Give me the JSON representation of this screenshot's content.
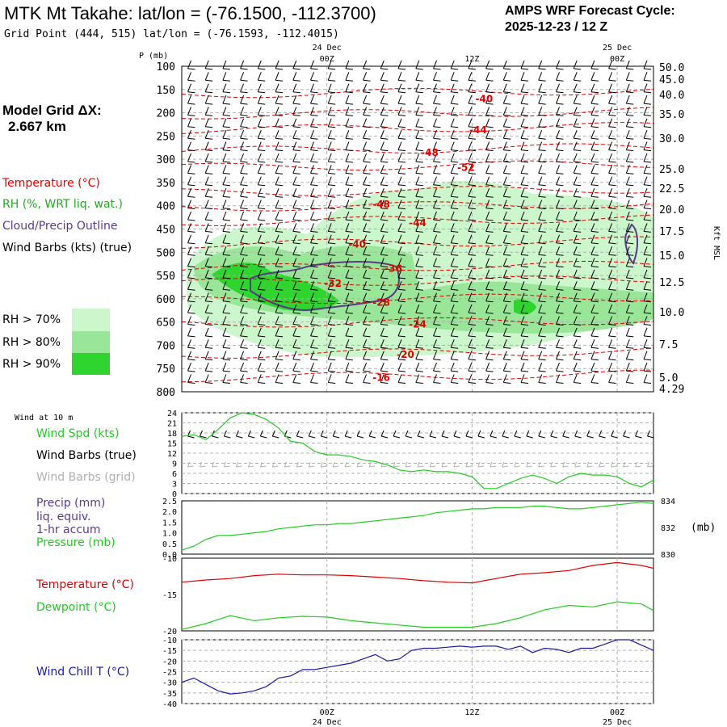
{
  "header": {
    "title": "MTK Mt Takahe:  lat/lon = (-76.1500, -112.3700)",
    "grid_point": "Grid Point (444, 515) lat/lon = (-76.1593, -112.4015)",
    "cycle_label": "AMPS WRF Forecast Cycle:",
    "cycle_value": "2025-12-23 / 12  Z"
  },
  "sidebar": {
    "model_grid_label": "Model Grid ΔX:",
    "model_grid_value": "2.667 km",
    "legend_temperature": "Temperature (°C)",
    "legend_rh": "RH (%, WRT liq. wat.)",
    "legend_cloud": "Cloud/Precip Outline",
    "legend_wind": "Wind Barbs (kts) (true)",
    "rh_levels": [
      {
        "label": "RH > 70%",
        "color": "#ccf7cc"
      },
      {
        "label": "RH > 80%",
        "color": "#99e699"
      },
      {
        "label": "RH > 90%",
        "color": "#2fd42f"
      }
    ]
  },
  "lower_labels": {
    "wind10m": "Wind at 10 m",
    "wind_spd": "Wind Spd (kts)",
    "barbs_true": "Wind Barbs (true)",
    "barbs_grid": "Wind Barbs (grid)",
    "precip": "Precip (mm)",
    "liq": "liq. equiv.",
    "accum": "1-hr accum",
    "pressure": "Pressure (mb)",
    "pressure_unit": "(mb)",
    "temperature": "Temperature (°C)",
    "dewpoint": "Dewpoint (°C)",
    "windchill": "Wind Chill T (°C)"
  },
  "colors": {
    "temperature": "#e00000",
    "dewpoint": "#22cc22",
    "rh_text": "#22aa22",
    "cloud": "#5a3a8a",
    "windchill": "#1a1aa0",
    "wind_spd": "#22cc22",
    "barb_grid": "#b0b0b0"
  },
  "chart_data": [
    {
      "type": "heatmap",
      "name": "vertical cross-section",
      "y_label": "P (mb)",
      "y_ticks": [
        "100",
        "150",
        "200",
        "250",
        "300",
        "350",
        "400",
        "450",
        "500",
        "550",
        "600",
        "650",
        "700",
        "750",
        "800"
      ],
      "right_label": "Kft MSL",
      "right_ticks": [
        "50.0",
        "45.0",
        "40.0",
        "35.0",
        "30.0",
        "25.0",
        "22.5",
        "20.0",
        "17.5",
        "15.0",
        "12.5",
        "10.0",
        "7.5",
        "5.0",
        "4.29"
      ],
      "time_ticks_top": [
        {
          "hour": "00Z",
          "date": "24 Dec"
        },
        {
          "hour": "12Z",
          "date": ""
        },
        {
          "hour": "00Z",
          "date": "25 Dec"
        }
      ],
      "p_range": [
        100,
        800
      ],
      "forecast_hours": [
        0,
        39
      ],
      "isotherms": [
        {
          "label": "-40",
          "f_hour": 25,
          "p": 170
        },
        {
          "label": "-44",
          "f_hour": 24.5,
          "p": 237
        },
        {
          "label": "-48",
          "f_hour": 20.5,
          "p": 286
        },
        {
          "label": "-52",
          "f_hour": 23.5,
          "p": 318
        },
        {
          "label": "-48",
          "f_hour": 16.5,
          "p": 397
        },
        {
          "label": "-44",
          "f_hour": 19.5,
          "p": 437
        },
        {
          "label": "-40",
          "f_hour": 14.5,
          "p": 483
        },
        {
          "label": "-36",
          "f_hour": 17.5,
          "p": 535
        },
        {
          "label": "-32",
          "f_hour": 12.5,
          "p": 567
        },
        {
          "label": "-28",
          "f_hour": 16.5,
          "p": 608
        },
        {
          "label": "-24",
          "f_hour": 19.5,
          "p": 655
        },
        {
          "label": "-20",
          "f_hour": 18.5,
          "p": 720
        },
        {
          "label": "-16",
          "f_hour": 16.5,
          "p": 770
        }
      ]
    },
    {
      "type": "line",
      "name": "wind10m",
      "y_ticks": [
        "24",
        "21",
        "18",
        "15",
        "12",
        "9",
        "6",
        "3",
        "0"
      ],
      "ylim": [
        0,
        24
      ],
      "series": [
        {
          "name": "Wind Spd (kts)",
          "x": [
            0,
            1,
            2,
            3,
            4,
            5,
            6,
            7,
            8,
            9,
            10,
            11,
            12,
            13,
            14,
            15,
            16,
            17,
            18,
            19,
            20,
            21,
            22,
            23,
            24,
            25,
            26,
            27,
            28,
            29,
            30,
            31,
            32,
            33,
            34,
            35,
            36,
            37,
            38,
            39
          ],
          "values": [
            17,
            17.5,
            16,
            19,
            22.5,
            24,
            23.5,
            22,
            19.5,
            15.5,
            15,
            12.5,
            11.5,
            11.5,
            11,
            10,
            9.5,
            8.5,
            7,
            6.5,
            7,
            6.5,
            6.5,
            6,
            5,
            1.5,
            1.5,
            3,
            4.5,
            5.5,
            4.5,
            3,
            5,
            6,
            5.5,
            5.5,
            5,
            3,
            2,
            4
          ]
        }
      ]
    },
    {
      "type": "line",
      "name": "precip_pressure",
      "y_ticks_left": [
        "2.5",
        "2.0",
        "1.5",
        "1.0",
        "0.5",
        "0.0"
      ],
      "y_ticks_right": [
        "834",
        "832",
        "830"
      ],
      "ylim_left": [
        0,
        2.5
      ],
      "ylim_right": [
        830,
        834
      ],
      "series": [
        {
          "name": "Pressure (mb)",
          "x": [
            0,
            1,
            2,
            3,
            4,
            5,
            6,
            7,
            8,
            9,
            10,
            11,
            12,
            13,
            14,
            15,
            16,
            17,
            18,
            19,
            20,
            21,
            22,
            23,
            24,
            25,
            26,
            27,
            28,
            29,
            30,
            31,
            32,
            33,
            34,
            35,
            36,
            37,
            38,
            39
          ],
          "values": [
            830.3,
            830.6,
            831.1,
            831.4,
            831.4,
            831.5,
            831.6,
            831.7,
            831.9,
            832.0,
            832.1,
            832.2,
            832.2,
            832.3,
            832.3,
            832.4,
            832.5,
            832.6,
            832.7,
            832.8,
            832.9,
            833.1,
            833.2,
            833.3,
            833.4,
            833.4,
            833.5,
            833.5,
            833.5,
            833.6,
            833.6,
            833.5,
            833.4,
            833.4,
            833.5,
            833.6,
            833.7,
            833.8,
            833.9,
            833.8
          ]
        }
      ]
    },
    {
      "type": "line",
      "name": "temp_dewpoint",
      "y_ticks": [
        "-10",
        "-15",
        "-20"
      ],
      "ylim": [
        -20,
        -10
      ],
      "series": [
        {
          "name": "Temperature (°C)",
          "x": [
            0,
            2,
            4,
            6,
            8,
            10,
            12,
            14,
            16,
            18,
            20,
            22,
            24,
            26,
            28,
            30,
            32,
            34,
            36,
            38,
            39
          ],
          "values": [
            -13.3,
            -13.0,
            -12.8,
            -12.4,
            -12.2,
            -12.3,
            -12.3,
            -12.4,
            -12.6,
            -12.8,
            -13.1,
            -13.3,
            -13.4,
            -12.8,
            -12.2,
            -12.0,
            -11.7,
            -11.0,
            -10.6,
            -11.0,
            -11.4
          ]
        },
        {
          "name": "Dewpoint (°C)",
          "x": [
            0,
            2,
            4,
            6,
            8,
            10,
            12,
            14,
            16,
            18,
            20,
            22,
            24,
            26,
            28,
            30,
            32,
            34,
            36,
            38,
            39
          ],
          "values": [
            -19.8,
            -19.0,
            -17.9,
            -18.6,
            -18.2,
            -18.0,
            -18.1,
            -18.6,
            -18.9,
            -19.2,
            -19.5,
            -19.5,
            -19.5,
            -19.0,
            -18.2,
            -17.1,
            -16.5,
            -16.7,
            -16.0,
            -16.3,
            -17.2
          ]
        }
      ]
    },
    {
      "type": "line",
      "name": "windchill",
      "y_ticks": [
        "-10",
        "-15",
        "-20",
        "-25",
        "-30",
        "-35",
        "-40"
      ],
      "ylim": [
        -40,
        -10
      ],
      "series": [
        {
          "name": "Wind Chill T (°C)",
          "x": [
            0,
            1,
            2,
            3,
            4,
            5,
            6,
            7,
            8,
            9,
            10,
            11,
            12,
            13,
            14,
            15,
            16,
            17,
            18,
            19,
            20,
            21,
            22,
            23,
            24,
            25,
            26,
            27,
            28,
            29,
            30,
            31,
            32,
            33,
            34,
            35,
            36,
            37,
            38,
            39
          ],
          "values": [
            -30,
            -28,
            -31,
            -34,
            -35.5,
            -35,
            -34,
            -32,
            -28,
            -27,
            -24,
            -24,
            -23,
            -22,
            -21,
            -19,
            -17,
            -20,
            -19,
            -15,
            -14,
            -14,
            -13.5,
            -13,
            -13.5,
            -13,
            -13,
            -14.5,
            -13,
            -16,
            -14,
            -14.5,
            -16,
            -14,
            -14,
            -12,
            -10,
            -10,
            -12.5,
            -15
          ]
        }
      ]
    }
  ],
  "bottom_axis": [
    {
      "hour": "00Z",
      "date": "24 Dec"
    },
    {
      "hour": "12Z",
      "date": ""
    },
    {
      "hour": "00Z",
      "date": "25 Dec"
    }
  ]
}
